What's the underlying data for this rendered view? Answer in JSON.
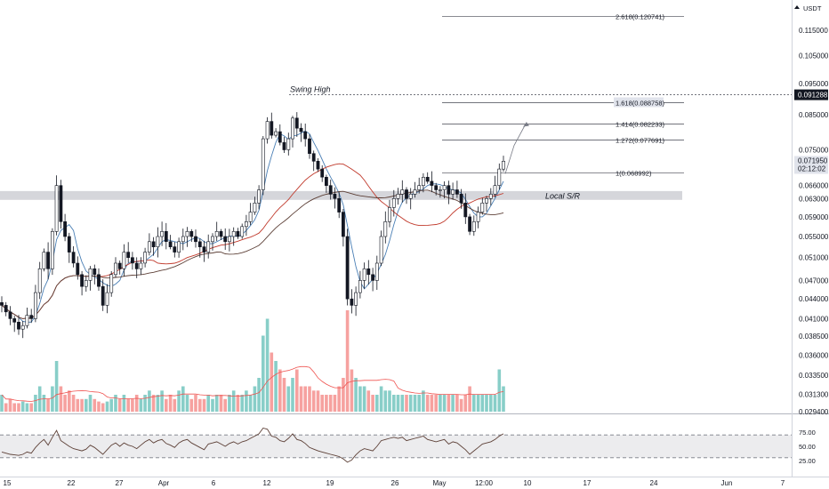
{
  "chart_data": {
    "type": "candlestick",
    "symbol_unit": "USDT",
    "scale": "log",
    "y_ticks": [
      0.115,
      0.105,
      0.095,
      0.085,
      0.075,
      0.066,
      0.063,
      0.059,
      0.055,
      0.051,
      0.047,
      0.044,
      0.041,
      0.0385,
      0.036,
      0.0335,
      0.0313,
      0.0294
    ],
    "y_tick_labels": [
      "0.115000",
      "0.105000",
      "0.095000",
      "0.085000",
      "0.075000",
      "0.066000",
      "0.063000",
      "0.059000",
      "0.055000",
      "0.051000",
      "0.047000",
      "0.044000",
      "0.041000",
      "0.038500",
      "0.036000",
      "0.033500",
      "0.031300",
      "0.029400"
    ],
    "x_tick_labels": [
      "15",
      "22",
      "27",
      "Apr",
      "6",
      "12",
      "19",
      "26",
      "May",
      "12:00",
      "10",
      "17",
      "24",
      "Jun",
      "7"
    ],
    "last_price": {
      "value": 0.07195,
      "label": "0.071950",
      "countdown": "02:12:02"
    },
    "swing_high": {
      "value": 0.091288,
      "label": "0.091288",
      "annotation": "Swing High"
    },
    "local_sr": {
      "label": "Local S/R",
      "low": 0.0627,
      "high": 0.0647
    },
    "fib_levels": [
      {
        "ratio": "2.618",
        "value": 0.120741,
        "label": "2.618(0.120741)"
      },
      {
        "ratio": "1.618",
        "value": 0.088758,
        "label": "1.618(0.088758)"
      },
      {
        "ratio": "1.414",
        "value": 0.082233,
        "label": "1.414(0.082233)"
      },
      {
        "ratio": "1.272",
        "value": 0.077691,
        "label": "1.272(0.077691)"
      },
      {
        "ratio": "1",
        "value": 0.068992,
        "label": "1(0.068992)"
      }
    ],
    "close_path": [
      0.043,
      0.042,
      0.041,
      0.0405,
      0.0395,
      0.04,
      0.0415,
      0.041,
      0.045,
      0.049,
      0.052,
      0.049,
      0.056,
      0.066,
      0.058,
      0.055,
      0.052,
      0.05,
      0.048,
      0.046,
      0.047,
      0.049,
      0.048,
      0.046,
      0.043,
      0.045,
      0.048,
      0.05,
      0.049,
      0.052,
      0.051,
      0.05,
      0.049,
      0.05,
      0.052,
      0.054,
      0.053,
      0.055,
      0.056,
      0.054,
      0.053,
      0.052,
      0.054,
      0.055,
      0.056,
      0.055,
      0.054,
      0.053,
      0.052,
      0.054,
      0.055,
      0.056,
      0.055,
      0.054,
      0.055,
      0.056,
      0.055,
      0.057,
      0.058,
      0.06,
      0.062,
      0.065,
      0.078,
      0.083,
      0.079,
      0.08,
      0.077,
      0.075,
      0.078,
      0.084,
      0.081,
      0.08,
      0.078,
      0.074,
      0.072,
      0.07,
      0.068,
      0.066,
      0.064,
      0.063,
      0.06,
      0.055,
      0.044,
      0.043,
      0.045,
      0.047,
      0.049,
      0.048,
      0.047,
      0.05,
      0.055,
      0.058,
      0.061,
      0.063,
      0.064,
      0.065,
      0.063,
      0.064,
      0.065,
      0.066,
      0.068,
      0.067,
      0.066,
      0.065,
      0.065,
      0.066,
      0.064,
      0.065,
      0.064,
      0.062,
      0.059,
      0.056,
      0.058,
      0.06,
      0.062,
      0.063,
      0.064,
      0.066,
      0.07,
      0.072
    ],
    "volume": [
      2,
      1,
      1.5,
      1,
      1,
      1.2,
      1,
      1,
      2,
      3,
      2,
      1.5,
      3,
      6,
      3,
      2,
      2.5,
      2,
      1.5,
      1.5,
      1.5,
      2,
      1.5,
      1.2,
      1,
      1.2,
      1.5,
      2,
      1.5,
      2,
      1.5,
      1.5,
      2,
      1.5,
      2,
      2.5,
      2,
      2,
      2.5,
      1.5,
      2,
      1.5,
      2.5,
      3,
      2,
      1.5,
      2,
      1.5,
      1.5,
      2,
      1.5,
      2,
      2,
      1.5,
      2,
      2.5,
      2,
      2,
      2.5,
      2,
      3,
      4,
      9,
      11,
      7,
      6,
      5,
      4,
      3,
      4,
      5,
      3,
      3,
      3,
      2.5,
      2.5,
      2,
      2,
      2,
      2,
      3,
      4,
      12,
      5,
      4,
      3,
      3,
      2.5,
      2,
      2,
      3,
      2.5,
      2.5,
      2,
      2,
      2,
      2,
      2,
      2,
      2,
      2.5,
      2,
      2,
      2,
      2,
      2,
      2,
      2,
      2,
      1.5,
      2,
      3,
      2,
      2,
      2,
      2,
      2,
      2,
      5,
      3
    ],
    "rsi": {
      "levels": [
        70,
        50,
        30
      ],
      "tick_labels": [
        "75.00",
        "50.00",
        "25.00"
      ],
      "values": [
        40,
        38,
        36,
        35,
        34,
        36,
        40,
        38,
        48,
        56,
        62,
        52,
        66,
        78,
        60,
        55,
        50,
        46,
        44,
        42,
        45,
        52,
        48,
        42,
        36,
        44,
        52,
        56,
        50,
        56,
        52,
        50,
        46,
        52,
        58,
        62,
        56,
        60,
        62,
        55,
        52,
        48,
        56,
        60,
        62,
        56,
        52,
        48,
        44,
        54,
        56,
        58,
        54,
        50,
        55,
        58,
        54,
        58,
        60,
        64,
        68,
        72,
        82,
        80,
        68,
        66,
        60,
        58,
        64,
        72,
        62,
        60,
        55,
        48,
        45,
        42,
        40,
        38,
        36,
        34,
        32,
        28,
        22,
        26,
        35,
        42,
        46,
        44,
        42,
        50,
        60,
        62,
        64,
        66,
        64,
        66,
        60,
        62,
        64,
        66,
        68,
        62,
        60,
        58,
        60,
        62,
        54,
        58,
        56,
        50,
        44,
        36,
        42,
        48,
        54,
        56,
        58,
        62,
        68,
        72
      ]
    }
  }
}
